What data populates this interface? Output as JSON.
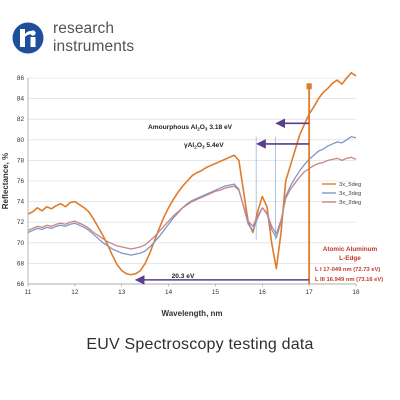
{
  "logo": {
    "name": "research-instruments-logo",
    "line1": "research",
    "line2": "instruments",
    "mark_color": "#1f4e9a",
    "text_color": "#51545a"
  },
  "caption": "EUV Spectroscopy testing data",
  "chart_data": {
    "type": "line",
    "xlabel": "Wavelength, nm",
    "ylabel": "Reflectance, %",
    "xlim": [
      11,
      18
    ],
    "ylim": [
      66,
      86
    ],
    "xticks": [
      "11",
      "12",
      "13",
      "14",
      "15",
      "16",
      "17",
      "18"
    ],
    "yticks": [
      "66",
      "68",
      "70",
      "72",
      "74",
      "76",
      "78",
      "80",
      "82",
      "84",
      "86"
    ],
    "grid": true,
    "legend_position": "right",
    "series": [
      {
        "name": "3x_5deg",
        "color": "#e07b2a",
        "x": [
          11.0,
          11.1,
          11.2,
          11.3,
          11.4,
          11.5,
          11.6,
          11.7,
          11.8,
          11.9,
          12.0,
          12.1,
          12.2,
          12.3,
          12.4,
          12.5,
          12.6,
          12.7,
          12.8,
          12.9,
          13.0,
          13.1,
          13.2,
          13.3,
          13.4,
          13.5,
          13.6,
          13.7,
          13.8,
          13.9,
          14.0,
          14.1,
          14.2,
          14.3,
          14.4,
          14.5,
          14.6,
          14.7,
          14.8,
          14.9,
          15.0,
          15.1,
          15.2,
          15.3,
          15.4,
          15.5,
          15.6,
          15.7,
          15.8,
          15.9,
          16.0,
          16.1,
          16.2,
          16.3,
          16.4,
          16.5,
          16.6,
          16.7,
          16.8,
          16.9,
          17.0,
          17.1,
          17.2,
          17.3,
          17.4,
          17.5,
          17.6,
          17.7,
          17.8,
          17.9,
          18.0
        ],
        "values": [
          72.8,
          73.0,
          73.4,
          73.1,
          73.5,
          73.3,
          73.6,
          73.8,
          73.5,
          73.9,
          74.0,
          73.7,
          73.4,
          73.0,
          72.3,
          71.5,
          70.7,
          69.8,
          68.8,
          67.9,
          67.3,
          67.0,
          66.9,
          67.0,
          67.3,
          68.0,
          69.0,
          70.2,
          71.4,
          72.5,
          73.4,
          74.2,
          74.9,
          75.5,
          76.0,
          76.5,
          76.8,
          77.0,
          77.3,
          77.5,
          77.7,
          77.9,
          78.1,
          78.3,
          78.5,
          78.0,
          75.0,
          72.0,
          71.0,
          73.0,
          74.5,
          73.5,
          70.0,
          67.5,
          71.0,
          76.0,
          77.5,
          79.0,
          80.5,
          81.5,
          82.5,
          83.2,
          84.0,
          84.6,
          85.0,
          85.5,
          85.8,
          85.4,
          86.0,
          86.5,
          86.2
        ]
      },
      {
        "name": "3x_3deg",
        "color": "#7f97c8",
        "x": [
          11.0,
          11.1,
          11.2,
          11.3,
          11.4,
          11.5,
          11.6,
          11.7,
          11.8,
          11.9,
          12.0,
          12.1,
          12.2,
          12.3,
          12.4,
          12.5,
          12.6,
          12.7,
          12.8,
          12.9,
          13.0,
          13.1,
          13.2,
          13.3,
          13.4,
          13.5,
          13.6,
          13.7,
          13.8,
          13.9,
          14.0,
          14.1,
          14.2,
          14.3,
          14.4,
          14.5,
          14.6,
          14.7,
          14.8,
          14.9,
          15.0,
          15.1,
          15.2,
          15.3,
          15.4,
          15.5,
          15.6,
          15.7,
          15.8,
          15.9,
          16.0,
          16.1,
          16.2,
          16.3,
          16.4,
          16.5,
          16.6,
          16.7,
          16.8,
          16.9,
          17.0,
          17.1,
          17.2,
          17.3,
          17.4,
          17.5,
          17.6,
          17.7,
          17.8,
          17.9,
          18.0
        ],
        "values": [
          71.0,
          71.2,
          71.4,
          71.3,
          71.5,
          71.4,
          71.6,
          71.7,
          71.6,
          71.8,
          71.9,
          71.7,
          71.5,
          71.2,
          70.8,
          70.4,
          70.0,
          69.7,
          69.4,
          69.2,
          69.0,
          68.9,
          68.8,
          68.9,
          69.0,
          69.2,
          69.6,
          70.1,
          70.6,
          71.2,
          71.8,
          72.4,
          72.9,
          73.4,
          73.8,
          74.1,
          74.3,
          74.5,
          74.7,
          74.9,
          75.1,
          75.3,
          75.5,
          75.6,
          75.7,
          75.2,
          73.5,
          71.8,
          71.2,
          72.4,
          73.4,
          72.8,
          71.3,
          70.5,
          72.0,
          74.5,
          75.5,
          76.3,
          77.0,
          77.6,
          78.1,
          78.5,
          78.9,
          79.1,
          79.4,
          79.6,
          79.8,
          79.7,
          80.0,
          80.3,
          80.2
        ]
      },
      {
        "name": "3x_2deg",
        "color": "#c98484",
        "x": [
          11.0,
          11.1,
          11.2,
          11.3,
          11.4,
          11.5,
          11.6,
          11.7,
          11.8,
          11.9,
          12.0,
          12.1,
          12.2,
          12.3,
          12.4,
          12.5,
          12.6,
          12.7,
          12.8,
          12.9,
          13.0,
          13.1,
          13.2,
          13.3,
          13.4,
          13.5,
          13.6,
          13.7,
          13.8,
          13.9,
          14.0,
          14.1,
          14.2,
          14.3,
          14.4,
          14.5,
          14.6,
          14.7,
          14.8,
          14.9,
          15.0,
          15.1,
          15.2,
          15.3,
          15.4,
          15.5,
          15.6,
          15.7,
          15.8,
          15.9,
          16.0,
          16.1,
          16.2,
          16.3,
          16.4,
          16.5,
          16.6,
          16.7,
          16.8,
          16.9,
          17.0,
          17.1,
          17.2,
          17.3,
          17.4,
          17.5,
          17.6,
          17.7,
          17.8,
          17.9,
          18.0
        ],
        "values": [
          71.2,
          71.4,
          71.6,
          71.5,
          71.7,
          71.6,
          71.8,
          71.9,
          71.8,
          72.0,
          72.1,
          71.9,
          71.7,
          71.4,
          71.0,
          70.7,
          70.4,
          70.1,
          69.9,
          69.7,
          69.6,
          69.5,
          69.4,
          69.5,
          69.6,
          69.8,
          70.2,
          70.6,
          71.1,
          71.6,
          72.1,
          72.6,
          73.0,
          73.4,
          73.7,
          74.0,
          74.2,
          74.4,
          74.6,
          74.8,
          75.0,
          75.1,
          75.3,
          75.4,
          75.5,
          75.1,
          73.6,
          72.1,
          71.6,
          72.6,
          73.4,
          72.9,
          71.6,
          70.9,
          72.2,
          74.3,
          75.2,
          75.8,
          76.4,
          76.9,
          77.2,
          77.5,
          77.7,
          77.8,
          78.0,
          78.1,
          78.2,
          78.0,
          78.2,
          78.3,
          78.1
        ]
      }
    ],
    "annotations": {
      "amorphous_label_main": "Amourphous Al",
      "amorphous_sub2": "2",
      "amorphous_mid": "O",
      "amorphous_sub3": "3",
      "amorphous_value": " 3.18 eV",
      "gamma_label_main": "γAl",
      "gamma_sub2": "2",
      "gamma_mid": "O",
      "gamma_sub3": "3",
      "gamma_value": " 5.4eV",
      "gap_label": "20.3 eV",
      "edge_title_1": "Atomic Aluminum",
      "edge_title_2": "L-Edge",
      "edge_line_1": "L I   17-049 nm (72.73 eV)",
      "edge_line_2": "L III  16.949 nm (73.16 eV)",
      "edge_color": "#c0392b",
      "arrow_color": "#5a3d8c",
      "marker_color": "#e07b2a"
    }
  }
}
